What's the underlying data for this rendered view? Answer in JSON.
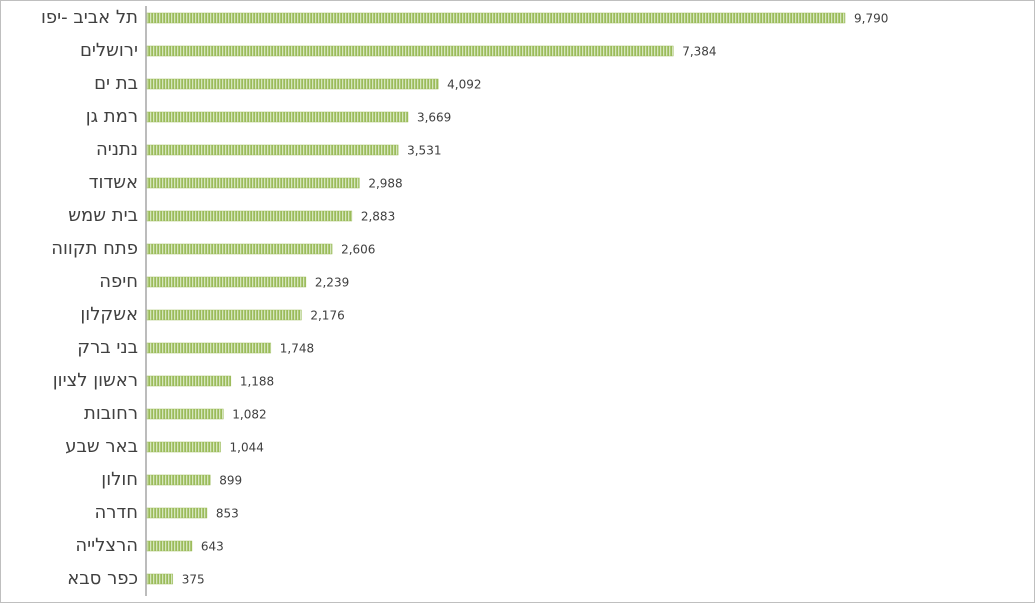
{
  "chart_data": {
    "type": "bar",
    "orientation": "horizontal",
    "categories": [
      "תל אביב -יפו",
      "ירושלים",
      "בת ים",
      "רמת גן",
      "נתניה",
      "אשדוד",
      "בית שמש",
      "פתח תקווה",
      "חיפה",
      "אשקלון",
      "בני ברק",
      "ראשון לציון",
      "רחובות",
      "באר שבע",
      "חולון",
      "חדרה",
      "הרצלייה",
      "כפר סבא"
    ],
    "values": [
      9790,
      7384,
      4092,
      3669,
      3531,
      2988,
      2883,
      2606,
      2239,
      2176,
      1748,
      1188,
      1082,
      1044,
      899,
      853,
      643,
      375
    ],
    "value_labels": [
      "9,790",
      "7,384",
      "4,092",
      "3,669",
      "3,531",
      "2,988",
      "2,883",
      "2,606",
      "2,239",
      "2,176",
      "1,748",
      "1,188",
      "1,082",
      "1,044",
      "899",
      "853",
      "643",
      "375"
    ],
    "color": "#9bbb59"
  }
}
